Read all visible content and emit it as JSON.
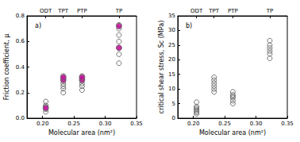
{
  "chart_data": [
    {
      "type": "scatter",
      "title": "a)",
      "x_label": "Molecular area (nm²)",
      "y_label": "Friction coefficient, μ",
      "xlim": [
        0.175,
        0.35
      ],
      "xticks": [
        {
          "value": 0.2,
          "label": "0.20"
        },
        0.25,
        {
          "value": 0.3,
          "label": "0.30"
        },
        0.35
      ],
      "ylim": [
        0,
        0.8
      ],
      "yticks": [
        {
          "value": 0,
          "label": "0.0"
        },
        0.2,
        0.4,
        0.6,
        0.8
      ],
      "grid": false,
      "annotations": [
        {
          "text": "ODT",
          "x": 0.205
        },
        {
          "text": "TPT",
          "x": 0.233
        },
        {
          "text": "PTP",
          "x": 0.263
        },
        {
          "text": "TP",
          "x": 0.322
        }
      ],
      "series": [
        {
          "color": "#555555",
          "marker": "open_circle",
          "x": [
            0.205,
            0.205,
            0.205,
            0.205,
            0.205,
            0.233,
            0.233,
            0.233,
            0.233,
            0.233,
            0.233,
            0.233,
            0.263,
            0.263,
            0.263,
            0.263,
            0.263,
            0.263,
            0.322,
            0.322,
            0.322,
            0.322,
            0.322,
            0.322,
            0.322
          ],
          "values": [
            0.05,
            0.07,
            0.09,
            0.1,
            0.13,
            0.2,
            0.23,
            0.25,
            0.27,
            0.29,
            0.31,
            0.33,
            0.22,
            0.25,
            0.27,
            0.29,
            0.31,
            0.33,
            0.43,
            0.5,
            0.55,
            0.6,
            0.65,
            0.7,
            0.73
          ]
        },
        {
          "color": "#c2179b",
          "marker": "circle",
          "x": [
            0.205,
            0.233,
            0.233,
            0.263,
            0.263,
            0.322,
            0.322
          ],
          "values": [
            0.08,
            0.3,
            0.32,
            0.3,
            0.32,
            0.55,
            0.72
          ]
        }
      ]
    },
    {
      "type": "scatter",
      "title": "b)",
      "x_label": "Molecular area (nm²)",
      "y_label": "critical shear stress, Sc (MPa)",
      "xlim": [
        0.175,
        0.35
      ],
      "xticks": [
        {
          "value": 0.2,
          "label": "0.20"
        },
        0.25,
        {
          "value": 0.3,
          "label": "0.30"
        },
        0.35
      ],
      "ylim": [
        0,
        35
      ],
      "yticks": [
        0,
        5,
        10,
        15,
        20,
        25,
        30,
        35
      ],
      "grid": false,
      "annotations": [
        {
          "text": "ODT",
          "x": 0.205
        },
        {
          "text": "TPT",
          "x": 0.233
        },
        {
          "text": "PTP",
          "x": 0.263
        },
        {
          "text": "TP",
          "x": 0.322
        }
      ],
      "series": [
        {
          "color": "#555555",
          "marker": "open_circle",
          "x": [
            0.205,
            0.205,
            0.205,
            0.205,
            0.205,
            0.205,
            0.205,
            0.233,
            0.233,
            0.233,
            0.233,
            0.233,
            0.233,
            0.263,
            0.263,
            0.263,
            0.263,
            0.263,
            0.263,
            0.322,
            0.322,
            0.322,
            0.322,
            0.322,
            0.322
          ],
          "values": [
            1.5,
            2,
            2.5,
            3,
            3.5,
            4,
            5.5,
            9,
            10,
            11,
            12,
            13,
            14,
            5,
            6,
            7,
            7.5,
            8,
            9,
            20.5,
            22,
            23,
            24,
            25,
            26.5
          ]
        }
      ]
    }
  ]
}
